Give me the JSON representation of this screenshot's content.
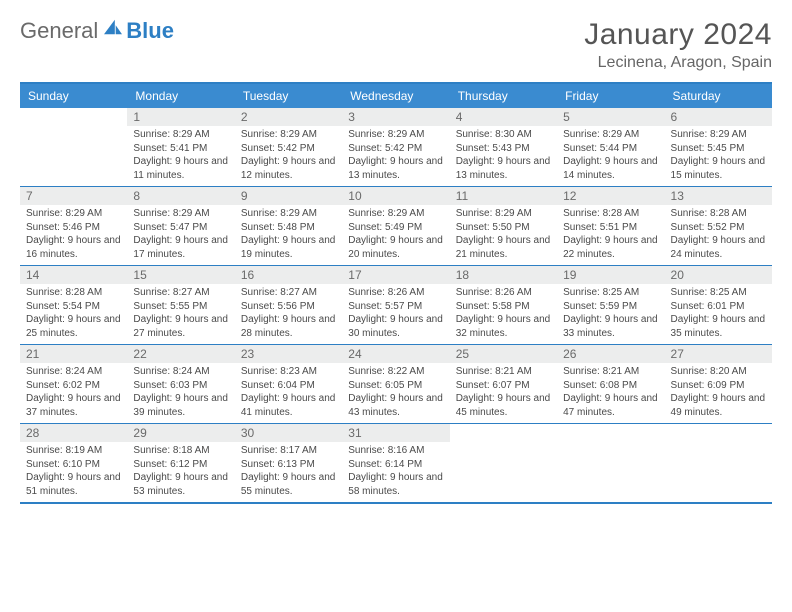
{
  "brand": {
    "general": "General",
    "blue": "Blue"
  },
  "header": {
    "title": "January 2024",
    "location": "Lecinena, Aragon, Spain"
  },
  "colors": {
    "header_bar": "#3a8bd0",
    "rule": "#2d7fc4",
    "daynum_bg": "#eceded",
    "text": "#4a4a4a"
  },
  "day_names": [
    "Sunday",
    "Monday",
    "Tuesday",
    "Wednesday",
    "Thursday",
    "Friday",
    "Saturday"
  ],
  "weeks": [
    [
      null,
      {
        "n": "1",
        "sr": "Sunrise: 8:29 AM",
        "ss": "Sunset: 5:41 PM",
        "dl": "Daylight: 9 hours and 11 minutes."
      },
      {
        "n": "2",
        "sr": "Sunrise: 8:29 AM",
        "ss": "Sunset: 5:42 PM",
        "dl": "Daylight: 9 hours and 12 minutes."
      },
      {
        "n": "3",
        "sr": "Sunrise: 8:29 AM",
        "ss": "Sunset: 5:42 PM",
        "dl": "Daylight: 9 hours and 13 minutes."
      },
      {
        "n": "4",
        "sr": "Sunrise: 8:30 AM",
        "ss": "Sunset: 5:43 PM",
        "dl": "Daylight: 9 hours and 13 minutes."
      },
      {
        "n": "5",
        "sr": "Sunrise: 8:29 AM",
        "ss": "Sunset: 5:44 PM",
        "dl": "Daylight: 9 hours and 14 minutes."
      },
      {
        "n": "6",
        "sr": "Sunrise: 8:29 AM",
        "ss": "Sunset: 5:45 PM",
        "dl": "Daylight: 9 hours and 15 minutes."
      }
    ],
    [
      {
        "n": "7",
        "sr": "Sunrise: 8:29 AM",
        "ss": "Sunset: 5:46 PM",
        "dl": "Daylight: 9 hours and 16 minutes."
      },
      {
        "n": "8",
        "sr": "Sunrise: 8:29 AM",
        "ss": "Sunset: 5:47 PM",
        "dl": "Daylight: 9 hours and 17 minutes."
      },
      {
        "n": "9",
        "sr": "Sunrise: 8:29 AM",
        "ss": "Sunset: 5:48 PM",
        "dl": "Daylight: 9 hours and 19 minutes."
      },
      {
        "n": "10",
        "sr": "Sunrise: 8:29 AM",
        "ss": "Sunset: 5:49 PM",
        "dl": "Daylight: 9 hours and 20 minutes."
      },
      {
        "n": "11",
        "sr": "Sunrise: 8:29 AM",
        "ss": "Sunset: 5:50 PM",
        "dl": "Daylight: 9 hours and 21 minutes."
      },
      {
        "n": "12",
        "sr": "Sunrise: 8:28 AM",
        "ss": "Sunset: 5:51 PM",
        "dl": "Daylight: 9 hours and 22 minutes."
      },
      {
        "n": "13",
        "sr": "Sunrise: 8:28 AM",
        "ss": "Sunset: 5:52 PM",
        "dl": "Daylight: 9 hours and 24 minutes."
      }
    ],
    [
      {
        "n": "14",
        "sr": "Sunrise: 8:28 AM",
        "ss": "Sunset: 5:54 PM",
        "dl": "Daylight: 9 hours and 25 minutes."
      },
      {
        "n": "15",
        "sr": "Sunrise: 8:27 AM",
        "ss": "Sunset: 5:55 PM",
        "dl": "Daylight: 9 hours and 27 minutes."
      },
      {
        "n": "16",
        "sr": "Sunrise: 8:27 AM",
        "ss": "Sunset: 5:56 PM",
        "dl": "Daylight: 9 hours and 28 minutes."
      },
      {
        "n": "17",
        "sr": "Sunrise: 8:26 AM",
        "ss": "Sunset: 5:57 PM",
        "dl": "Daylight: 9 hours and 30 minutes."
      },
      {
        "n": "18",
        "sr": "Sunrise: 8:26 AM",
        "ss": "Sunset: 5:58 PM",
        "dl": "Daylight: 9 hours and 32 minutes."
      },
      {
        "n": "19",
        "sr": "Sunrise: 8:25 AM",
        "ss": "Sunset: 5:59 PM",
        "dl": "Daylight: 9 hours and 33 minutes."
      },
      {
        "n": "20",
        "sr": "Sunrise: 8:25 AM",
        "ss": "Sunset: 6:01 PM",
        "dl": "Daylight: 9 hours and 35 minutes."
      }
    ],
    [
      {
        "n": "21",
        "sr": "Sunrise: 8:24 AM",
        "ss": "Sunset: 6:02 PM",
        "dl": "Daylight: 9 hours and 37 minutes."
      },
      {
        "n": "22",
        "sr": "Sunrise: 8:24 AM",
        "ss": "Sunset: 6:03 PM",
        "dl": "Daylight: 9 hours and 39 minutes."
      },
      {
        "n": "23",
        "sr": "Sunrise: 8:23 AM",
        "ss": "Sunset: 6:04 PM",
        "dl": "Daylight: 9 hours and 41 minutes."
      },
      {
        "n": "24",
        "sr": "Sunrise: 8:22 AM",
        "ss": "Sunset: 6:05 PM",
        "dl": "Daylight: 9 hours and 43 minutes."
      },
      {
        "n": "25",
        "sr": "Sunrise: 8:21 AM",
        "ss": "Sunset: 6:07 PM",
        "dl": "Daylight: 9 hours and 45 minutes."
      },
      {
        "n": "26",
        "sr": "Sunrise: 8:21 AM",
        "ss": "Sunset: 6:08 PM",
        "dl": "Daylight: 9 hours and 47 minutes."
      },
      {
        "n": "27",
        "sr": "Sunrise: 8:20 AM",
        "ss": "Sunset: 6:09 PM",
        "dl": "Daylight: 9 hours and 49 minutes."
      }
    ],
    [
      {
        "n": "28",
        "sr": "Sunrise: 8:19 AM",
        "ss": "Sunset: 6:10 PM",
        "dl": "Daylight: 9 hours and 51 minutes."
      },
      {
        "n": "29",
        "sr": "Sunrise: 8:18 AM",
        "ss": "Sunset: 6:12 PM",
        "dl": "Daylight: 9 hours and 53 minutes."
      },
      {
        "n": "30",
        "sr": "Sunrise: 8:17 AM",
        "ss": "Sunset: 6:13 PM",
        "dl": "Daylight: 9 hours and 55 minutes."
      },
      {
        "n": "31",
        "sr": "Sunrise: 8:16 AM",
        "ss": "Sunset: 6:14 PM",
        "dl": "Daylight: 9 hours and 58 minutes."
      },
      null,
      null,
      null
    ]
  ]
}
